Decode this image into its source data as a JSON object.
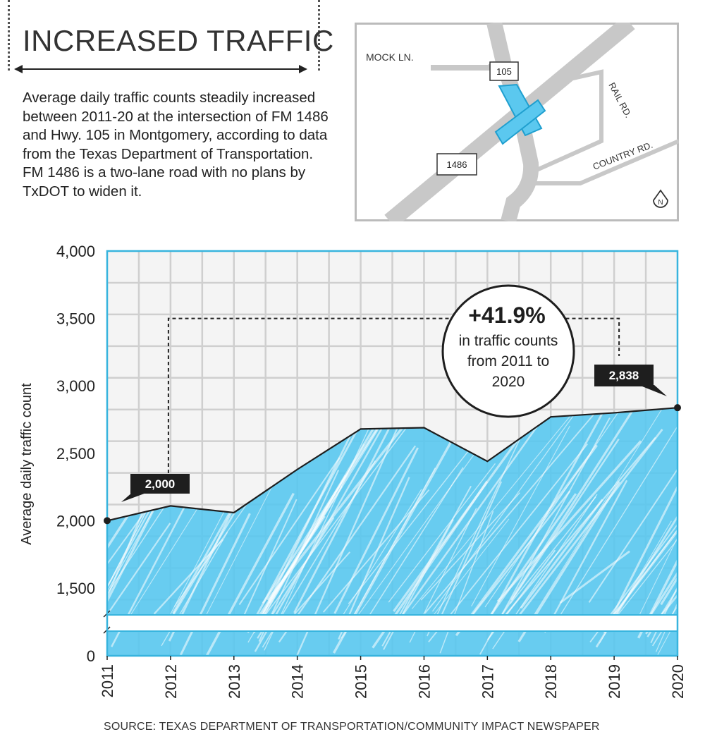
{
  "header": {
    "title": "INCREASED TRAFFIC",
    "description": "Average daily traffic counts steadily increased between 2011-20 at the intersection of FM 1486 and Hwy. 105 in Montgomery, according to data from the Texas Department of Transportation. FM 1486 is a two-lane road with no plans by TxDOT to widen it."
  },
  "map": {
    "labels": {
      "mock_ln": "MOCK LN.",
      "hwy_105": "105",
      "rail_rd": "RAIL RD.",
      "country_rd": "COUNTRY RD.",
      "fm_1486": "1486",
      "north": "N"
    },
    "colors": {
      "road": "#c8c8c8",
      "intersection": "#5bc8ef",
      "border": "#bbbbbb"
    }
  },
  "chart_data": {
    "type": "area",
    "x": [
      "2011",
      "2012",
      "2013",
      "2014",
      "2015",
      "2016",
      "2017",
      "2018",
      "2019",
      "2020"
    ],
    "series": [
      {
        "values": [
          2000,
          2110,
          2060,
          2380,
          2680,
          2690,
          2440,
          2770,
          2800,
          2838
        ]
      }
    ],
    "ylabel": "Average daily traffic count",
    "xlabel": "",
    "yticks": [
      "0",
      "1,500",
      "2,000",
      "2,500",
      "3,000",
      "3,500",
      "4,000"
    ],
    "ylim": [
      0,
      4000
    ],
    "axis_break": "between 0 and 1,500",
    "grid": true,
    "callouts": {
      "start_label": "2,000",
      "end_label": "2,838",
      "change_value": "+41.9%",
      "change_text": [
        "in traffic counts",
        "from 2011 to",
        "2020"
      ]
    },
    "colors": {
      "fill": "#5bc8ef",
      "frame": "#37b4de",
      "line": "#1e1e1e",
      "grid": "#cfcfcf",
      "plot_bg": "#f4f4f4"
    }
  },
  "footer": {
    "source": "SOURCE: TEXAS DEPARTMENT OF TRANSPORTATION/COMMUNITY IMPACT NEWSPAPER"
  }
}
